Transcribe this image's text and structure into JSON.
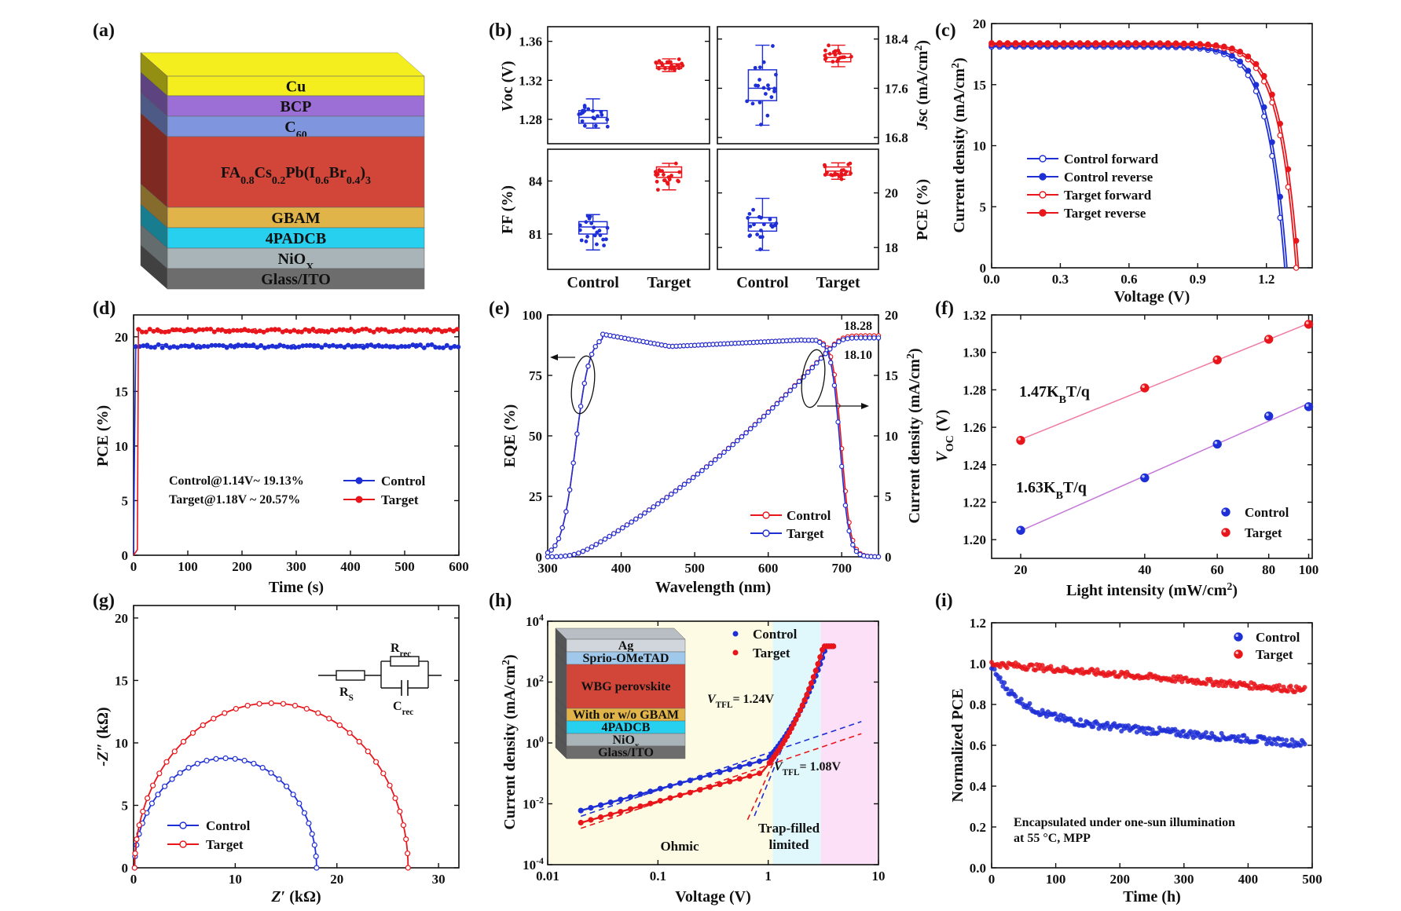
{
  "figure": {
    "panel_labels": [
      "(a)",
      "(b)",
      "(c)",
      "(d)",
      "(e)",
      "(f)",
      "(g)",
      "(h)",
      "(i)"
    ]
  },
  "colors": {
    "control": "#1f2fd6",
    "target": "#e8161b"
  },
  "stack_a": {
    "layers": [
      {
        "name": "Cu",
        "color": "#f5ee1e"
      },
      {
        "name": "BCP",
        "color": "#9b6fd6"
      },
      {
        "name": "C60",
        "color": "#7f96de"
      },
      {
        "name": "FA0.8Cs0.2Pb(I0.6Br0.4)3",
        "color": "#d2463a"
      },
      {
        "name": "GBAM",
        "color": "#e0b449"
      },
      {
        "name": "4PADCB",
        "color": "#27d0ef"
      },
      {
        "name": "NiOX",
        "color": "#a8b4b8"
      },
      {
        "name": "Glass/ITO",
        "color": "#6d6d6d"
      }
    ]
  },
  "chart_data": [
    {
      "id": "b",
      "type": "box",
      "categories": [
        "Control",
        "Target"
      ],
      "subplots": [
        {
          "ylabel": "Voc (V)",
          "ticks": [
            "1.28",
            "1.32",
            "1.36"
          ],
          "ylim": [
            1.255,
            1.375
          ],
          "boxes": [
            {
              "min": 1.271,
              "q1": 1.276,
              "median": 1.282,
              "q3": 1.289,
              "max": 1.301
            },
            {
              "min": 1.329,
              "q1": 1.332,
              "median": 1.334,
              "q3": 1.337,
              "max": 1.342
            }
          ]
        },
        {
          "ylabel": "Jsc (mA/cm2)",
          "ticks": [
            "16.8",
            "17.6",
            "18.4"
          ],
          "ylim": [
            16.7,
            18.6
          ],
          "boxes": [
            {
              "min": 17.0,
              "q1": 17.4,
              "median": 17.6,
              "q3": 17.9,
              "max": 18.3
            },
            {
              "min": 17.95,
              "q1": 18.03,
              "median": 18.1,
              "q3": 18.16,
              "max": 18.3
            }
          ]
        },
        {
          "ylabel": "FF (%)",
          "ticks": [
            "81",
            "84"
          ],
          "ylim": [
            79.0,
            85.8
          ],
          "boxes": [
            {
              "min": 80.1,
              "q1": 81.0,
              "median": 81.4,
              "q3": 81.7,
              "max": 82.1
            },
            {
              "min": 83.5,
              "q1": 84.2,
              "median": 84.5,
              "q3": 84.8,
              "max": 85.0
            }
          ]
        },
        {
          "ylabel": "PCE (%)",
          "ticks": [
            "18",
            "20"
          ],
          "ylim": [
            17.2,
            21.6
          ],
          "boxes": [
            {
              "min": 17.9,
              "q1": 18.6,
              "median": 18.9,
              "q3": 19.1,
              "max": 19.8
            },
            {
              "min": 20.5,
              "q1": 20.65,
              "median": 20.8,
              "q3": 20.95,
              "max": 21.1
            }
          ]
        }
      ]
    },
    {
      "id": "c",
      "type": "line",
      "xlabel": "Voltage (V)",
      "ylabel": "Current density (mA/cm2)",
      "xlim": [
        0,
        1.4
      ],
      "ylim": [
        0,
        20
      ],
      "xticks": [
        "0.0",
        "0.3",
        "0.6",
        "0.9",
        "1.2"
      ],
      "yticks": [
        "0",
        "5",
        "10",
        "15",
        "20"
      ],
      "series": [
        {
          "name": "Control forward",
          "Jsc": 18.1,
          "Voc": 1.28
        },
        {
          "name": "Control reverse",
          "Jsc": 18.2,
          "Voc": 1.29
        },
        {
          "name": "Target forward",
          "Jsc": 18.3,
          "Voc": 1.33
        },
        {
          "name": "Target reverse",
          "Jsc": 18.4,
          "Voc": 1.34
        }
      ]
    },
    {
      "id": "d",
      "type": "line",
      "xlabel": "Time (s)",
      "ylabel": "PCE (%)",
      "xlim": [
        0,
        600
      ],
      "ylim": [
        0,
        22
      ],
      "xticks": [
        "0",
        "100",
        "200",
        "300",
        "400",
        "500",
        "600"
      ],
      "yticks": [
        "0",
        "5",
        "10",
        "15",
        "20"
      ],
      "annotation": [
        "Control@1.14V~ 19.13%",
        "Target@1.18V ~ 20.57%"
      ],
      "series": [
        {
          "name": "Control",
          "level": 19.13
        },
        {
          "name": "Target",
          "level": 20.57
        }
      ]
    },
    {
      "id": "e",
      "type": "line",
      "xlabel": "Wavelength (nm)",
      "ylabel_left": "EQE (%)",
      "ylabel_right": "Current density (mA/cm2)",
      "xlim": [
        300,
        750
      ],
      "ylim_left": [
        0,
        100
      ],
      "ylim_right": [
        0,
        20
      ],
      "xticks": [
        "300",
        "400",
        "500",
        "600",
        "700"
      ],
      "yticks_left": [
        "0",
        "25",
        "50",
        "75",
        "100"
      ],
      "yticks_right": [
        "0",
        "5",
        "10",
        "15",
        "20"
      ],
      "integrated_values": [
        "18.28",
        "18.10"
      ],
      "series": [
        {
          "name": "Control"
        },
        {
          "name": "Target"
        }
      ]
    },
    {
      "id": "f",
      "type": "scatter",
      "xlabel": "Light intensity (mW/cm2)",
      "ylabel": "VOC (V)",
      "xlim": [
        17,
        102
      ],
      "ylim": [
        1.19,
        1.32
      ],
      "xticks": [
        "20",
        "40",
        "60",
        "80",
        "100"
      ],
      "yticks": [
        "1.20",
        "1.22",
        "1.24",
        "1.26",
        "1.28",
        "1.30",
        "1.32"
      ],
      "fit_labels": [
        "1.47KBT/q",
        "1.63KBT/q"
      ],
      "series": [
        {
          "name": "Control",
          "x": [
            20,
            40,
            60,
            80,
            100
          ],
          "y": [
            1.205,
            1.233,
            1.251,
            1.266,
            1.271
          ]
        },
        {
          "name": "Target",
          "x": [
            20,
            40,
            60,
            80,
            100
          ],
          "y": [
            1.253,
            1.281,
            1.296,
            1.307,
            1.315
          ]
        }
      ]
    },
    {
      "id": "g",
      "type": "line",
      "xlabel": "Z' (kΩ)",
      "ylabel": "-Z'' (kΩ)",
      "xlim": [
        0,
        32
      ],
      "ylim": [
        0,
        21
      ],
      "xticks": [
        "0",
        "10",
        "20",
        "30"
      ],
      "yticks": [
        "0",
        "5",
        "10",
        "15",
        "20"
      ],
      "circuit_labels": [
        "RS",
        "Rrec",
        "Crec"
      ],
      "series": [
        {
          "name": "Control",
          "Rs": 0.1,
          "Rrec": 17.9
        },
        {
          "name": "Target",
          "Rs": 0.1,
          "Rrec": 26.9
        }
      ]
    },
    {
      "id": "h",
      "type": "line",
      "xlabel": "Voltage (V)",
      "ylabel": "Current density (mA/cm2)",
      "xscale": "log",
      "yscale": "log",
      "xlim": [
        0.01,
        10
      ],
      "ylim": [
        0.0001,
        10000
      ],
      "xticks": [
        "0.01",
        "0.1",
        "1",
        "10"
      ],
      "yticks": [
        "10-4",
        "10-2",
        "100",
        "102",
        "104"
      ],
      "region_labels": [
        "Ohmic",
        "Trap-filled",
        "limited"
      ],
      "vtfl_labels": [
        "VTFL= 1.24V",
        "VTFL= 1.08V"
      ],
      "inset_layers": [
        "Ag",
        "Sprio-OMeTAD",
        "WBG perovskite",
        "With or w/o GBAM",
        "4PADCB",
        "NiOx",
        "Glass/ITO"
      ],
      "series": [
        {
          "name": "Control"
        },
        {
          "name": "Target"
        }
      ]
    },
    {
      "id": "i",
      "type": "scatter",
      "xlabel": "Time (h)",
      "ylabel": "Normalized PCE",
      "xlim": [
        0,
        500
      ],
      "ylim": [
        0,
        1.2
      ],
      "xticks": [
        "0",
        "100",
        "200",
        "300",
        "400",
        "500"
      ],
      "yticks": [
        "0.0",
        "0.2",
        "0.4",
        "0.6",
        "0.8",
        "1.0",
        "1.2"
      ],
      "annotation": [
        "Encapsulated under one-sun illumination",
        "at 55 °C, MPP"
      ],
      "series": [
        {
          "name": "Control",
          "start": 0.96,
          "end": 0.59
        },
        {
          "name": "Target",
          "start": 1.0,
          "end": 0.87
        }
      ]
    }
  ]
}
